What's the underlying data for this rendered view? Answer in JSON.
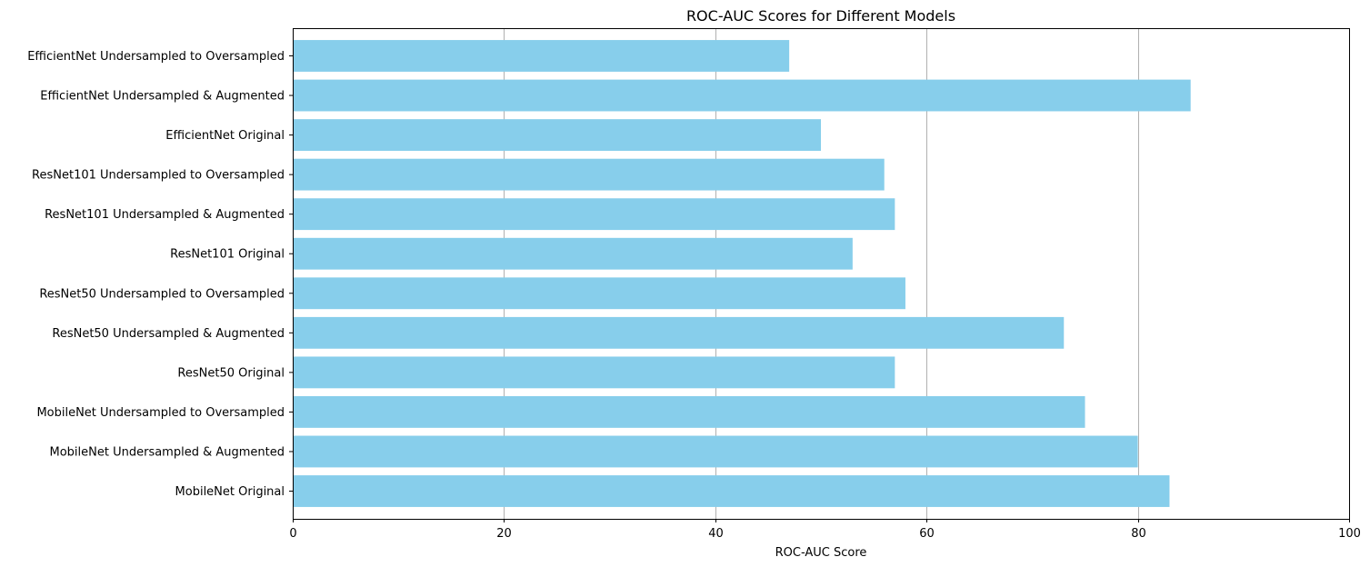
{
  "chart_data": {
    "type": "bar",
    "orientation": "horizontal",
    "title": "ROC-AUC Scores for Different Models",
    "xlabel": "ROC-AUC Score",
    "ylabel": "",
    "xlim": [
      0,
      100
    ],
    "xticks": [
      0,
      20,
      40,
      60,
      80,
      100
    ],
    "grid": "x",
    "bar_color": "#87CEEB",
    "categories": [
      "MobileNet Original",
      "MobileNet Undersampled & Augmented",
      "MobileNet Undersampled to Oversampled",
      "ResNet50 Original",
      "ResNet50 Undersampled & Augmented",
      "ResNet50 Undersampled to Oversampled",
      "ResNet101 Original",
      "ResNet101 Undersampled & Augmented",
      "ResNet101 Undersampled to Oversampled",
      "EfficientNet Original",
      "EfficientNet Undersampled & Augmented",
      "EfficientNet Undersampled to Oversampled"
    ],
    "values": [
      83,
      80,
      75,
      57,
      73,
      58,
      53,
      57,
      56,
      50,
      85,
      47
    ]
  }
}
